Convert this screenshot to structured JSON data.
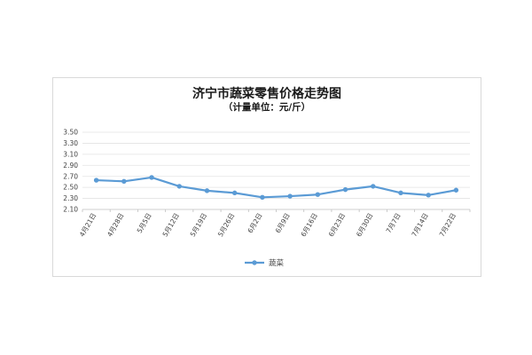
{
  "chart_data": {
    "type": "line",
    "title": "济宁市蔬菜零售价格走势图",
    "subtitle": "（计量单位：元/斤）",
    "xlabel": "",
    "ylabel": "",
    "categories": [
      "4月21日",
      "4月28日",
      "5月5日",
      "5月12日",
      "5月19日",
      "5月26日",
      "6月2日",
      "6月9日",
      "6月16日",
      "6月23日",
      "6月30日",
      "7月7日",
      "7月14日",
      "7月22日"
    ],
    "series": [
      {
        "name": "蔬菜",
        "color": "#5b9bd5",
        "values": [
          2.63,
          2.61,
          2.68,
          2.52,
          2.44,
          2.4,
          2.32,
          2.34,
          2.37,
          2.46,
          2.52,
          2.4,
          2.36,
          2.45
        ]
      }
    ],
    "ylim": [
      2.1,
      3.5
    ],
    "yticks": [
      "3.50",
      "3.30",
      "3.10",
      "2.90",
      "2.70",
      "2.50",
      "2.30",
      "2.10"
    ],
    "ytick_values": [
      3.5,
      3.3,
      3.1,
      2.9,
      2.7,
      2.5,
      2.3,
      2.1
    ],
    "grid": true,
    "legend": "bottom"
  }
}
